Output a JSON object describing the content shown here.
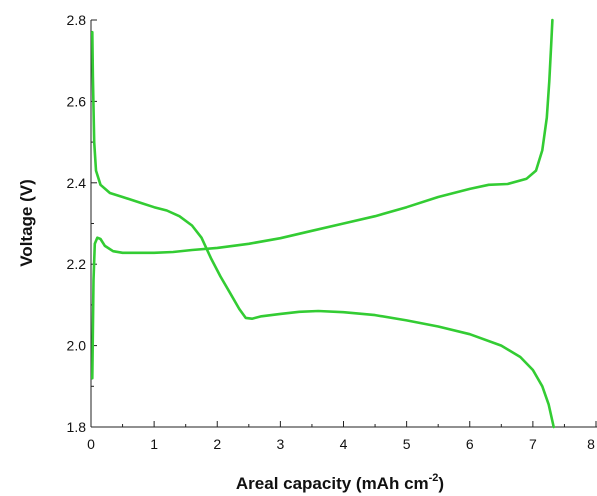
{
  "chart_data": {
    "type": "line",
    "xlabel": "Areal capacity (mAh cm",
    "xlabel_sup": "-2",
    "xlabel_end": ")",
    "ylabel": "Voltage (V)",
    "xlim": [
      0,
      8
    ],
    "ylim": [
      1.8,
      2.8
    ],
    "x_ticks": [
      0,
      1,
      2,
      3,
      4,
      5,
      6,
      7,
      8
    ],
    "y_ticks": [
      1.8,
      2.0,
      2.2,
      2.4,
      2.6,
      2.8
    ],
    "x_tick_labels": [
      "0",
      "1",
      "2",
      "3",
      "4",
      "5",
      "6",
      "7",
      "8"
    ],
    "y_tick_labels": [
      "1.8",
      "2.0",
      "2.2",
      "2.4",
      "2.6",
      "2.8"
    ],
    "grid": false,
    "color": "#33cc33",
    "series": [
      {
        "points": [
          [
            0.02,
            2.77
          ],
          [
            0.03,
            2.66
          ],
          [
            0.05,
            2.5
          ],
          [
            0.08,
            2.43
          ],
          [
            0.15,
            2.395
          ],
          [
            0.3,
            2.375
          ],
          [
            0.5,
            2.365
          ],
          [
            0.8,
            2.35
          ],
          [
            1.0,
            2.34
          ],
          [
            1.2,
            2.332
          ],
          [
            1.4,
            2.318
          ],
          [
            1.6,
            2.295
          ],
          [
            1.75,
            2.265
          ],
          [
            1.9,
            2.215
          ],
          [
            2.05,
            2.17
          ],
          [
            2.2,
            2.13
          ],
          [
            2.35,
            2.09
          ],
          [
            2.45,
            2.068
          ],
          [
            2.55,
            2.066
          ],
          [
            2.7,
            2.072
          ],
          [
            3.0,
            2.078
          ],
          [
            3.3,
            2.083
          ],
          [
            3.6,
            2.085
          ],
          [
            4.0,
            2.082
          ],
          [
            4.5,
            2.075
          ],
          [
            5.0,
            2.062
          ],
          [
            5.5,
            2.047
          ],
          [
            6.0,
            2.028
          ],
          [
            6.5,
            2.0
          ],
          [
            6.8,
            1.972
          ],
          [
            7.0,
            1.94
          ],
          [
            7.15,
            1.9
          ],
          [
            7.25,
            1.855
          ],
          [
            7.33,
            1.8
          ]
        ]
      },
      {
        "points": [
          [
            0.02,
            1.92
          ],
          [
            0.04,
            2.16
          ],
          [
            0.06,
            2.25
          ],
          [
            0.1,
            2.265
          ],
          [
            0.15,
            2.262
          ],
          [
            0.22,
            2.245
          ],
          [
            0.35,
            2.232
          ],
          [
            0.5,
            2.228
          ],
          [
            0.8,
            2.228
          ],
          [
            1.0,
            2.228
          ],
          [
            1.3,
            2.23
          ],
          [
            1.6,
            2.235
          ],
          [
            2.0,
            2.24
          ],
          [
            2.5,
            2.25
          ],
          [
            3.0,
            2.264
          ],
          [
            3.5,
            2.282
          ],
          [
            4.0,
            2.3
          ],
          [
            4.5,
            2.318
          ],
          [
            5.0,
            2.34
          ],
          [
            5.5,
            2.365
          ],
          [
            6.0,
            2.385
          ],
          [
            6.3,
            2.395
          ],
          [
            6.6,
            2.397
          ],
          [
            6.9,
            2.41
          ],
          [
            7.05,
            2.43
          ],
          [
            7.15,
            2.48
          ],
          [
            7.22,
            2.56
          ],
          [
            7.26,
            2.65
          ],
          [
            7.29,
            2.74
          ],
          [
            7.31,
            2.8
          ]
        ]
      }
    ]
  }
}
